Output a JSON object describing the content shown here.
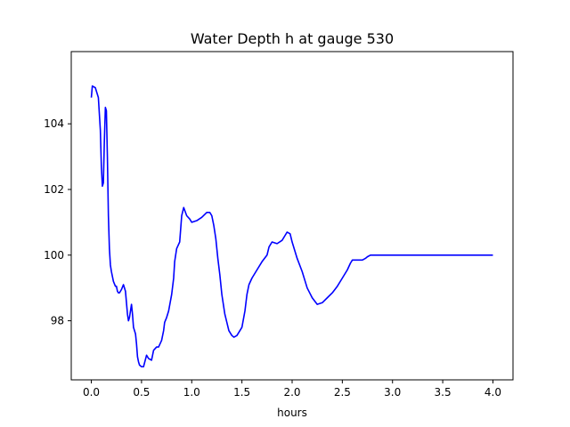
{
  "chart_data": {
    "type": "line",
    "title": "Water Depth h at gauge 530",
    "xlabel": "hours",
    "ylabel": "",
    "xlim": [
      -0.2,
      4.2
    ],
    "ylim": [
      96.2,
      106.2
    ],
    "xticks": [
      0.0,
      0.5,
      1.0,
      1.5,
      2.0,
      2.5,
      3.0,
      3.5,
      4.0
    ],
    "xtick_labels": [
      "0.0",
      "0.5",
      "1.0",
      "1.5",
      "2.0",
      "2.5",
      "3.0",
      "3.5",
      "4.0"
    ],
    "yticks": [
      98,
      100,
      102,
      104
    ],
    "ytick_labels": [
      "98",
      "100",
      "102",
      "104"
    ],
    "grid": false,
    "series": [
      {
        "color": "#0000ff",
        "x": [
          0.0,
          0.01,
          0.04,
          0.07,
          0.09,
          0.1,
          0.11,
          0.12,
          0.13,
          0.14,
          0.15,
          0.16,
          0.17,
          0.18,
          0.19,
          0.2,
          0.22,
          0.24,
          0.25,
          0.26,
          0.27,
          0.28,
          0.3,
          0.32,
          0.34,
          0.36,
          0.37,
          0.38,
          0.4,
          0.41,
          0.42,
          0.43,
          0.44,
          0.45,
          0.46,
          0.47,
          0.48,
          0.5,
          0.52,
          0.55,
          0.57,
          0.6,
          0.62,
          0.65,
          0.67,
          0.7,
          0.72,
          0.73,
          0.75,
          0.77,
          0.8,
          0.82,
          0.83,
          0.85,
          0.88,
          0.9,
          0.92,
          0.95,
          0.98,
          1.0,
          1.05,
          1.1,
          1.15,
          1.18,
          1.2,
          1.22,
          1.24,
          1.26,
          1.28,
          1.3,
          1.33,
          1.37,
          1.4,
          1.42,
          1.45,
          1.5,
          1.53,
          1.55,
          1.57,
          1.6,
          1.65,
          1.7,
          1.75,
          1.77,
          1.8,
          1.85,
          1.9,
          1.93,
          1.95,
          1.98,
          2.0,
          2.05,
          2.1,
          2.15,
          2.2,
          2.25,
          2.3,
          2.35,
          2.4,
          2.45,
          2.5,
          2.55,
          2.58,
          2.6,
          2.65,
          2.7,
          2.73,
          2.75,
          2.78,
          2.8,
          2.85,
          2.9,
          2.95,
          3.0,
          3.05,
          3.1,
          3.15,
          3.2,
          3.22,
          3.25,
          3.3,
          3.35,
          3.4,
          3.45,
          3.5,
          3.55,
          3.6,
          3.65,
          3.7,
          3.75,
          3.8,
          3.85,
          3.9,
          3.95,
          4.0
        ],
        "y": [
          104.8,
          105.15,
          105.1,
          104.8,
          103.8,
          102.7,
          102.1,
          102.2,
          103.5,
          104.5,
          104.4,
          103.0,
          101.2,
          100.2,
          99.7,
          99.5,
          99.2,
          99.05,
          99.05,
          98.9,
          98.85,
          98.85,
          98.95,
          99.1,
          98.9,
          98.2,
          98.0,
          98.1,
          98.5,
          98.2,
          97.8,
          97.7,
          97.6,
          97.3,
          96.9,
          96.75,
          96.65,
          96.6,
          96.6,
          96.95,
          96.85,
          96.8,
          97.1,
          97.2,
          97.2,
          97.4,
          97.7,
          97.95,
          98.1,
          98.3,
          98.8,
          99.3,
          99.8,
          100.2,
          100.4,
          101.2,
          101.45,
          101.2,
          101.1,
          101.0,
          101.05,
          101.15,
          101.3,
          101.3,
          101.2,
          100.9,
          100.5,
          99.9,
          99.4,
          98.8,
          98.2,
          97.7,
          97.55,
          97.5,
          97.55,
          97.8,
          98.3,
          98.8,
          99.1,
          99.3,
          99.55,
          99.8,
          100.0,
          100.25,
          100.4,
          100.35,
          100.45,
          100.6,
          100.7,
          100.65,
          100.4,
          99.9,
          99.5,
          99.0,
          98.7,
          98.5,
          98.55,
          98.7,
          98.85,
          99.05,
          99.3,
          99.55,
          99.75,
          99.85,
          99.85,
          99.85,
          99.9,
          99.95,
          100.0,
          100.0,
          100.0,
          100.0,
          100.0,
          100.0,
          100.0,
          100.0,
          100.0,
          100.0,
          100.0,
          100.0,
          100.0,
          100.0,
          100.0,
          100.0,
          100.0,
          100.0,
          100.0,
          100.0,
          100.0,
          100.0,
          100.0,
          100.0,
          100.0,
          100.0,
          100.0
        ]
      }
    ]
  }
}
